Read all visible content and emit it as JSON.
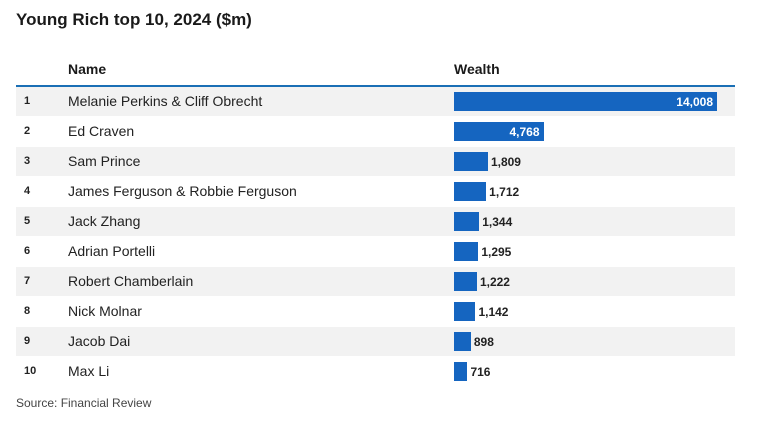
{
  "title": "Young Rich top 10, 2024 ($m)",
  "headers": {
    "name": "Name",
    "wealth": "Wealth"
  },
  "source": "Source: Financial Review",
  "colors": {
    "bar": "#1565c0",
    "rule": "#1a6fb5",
    "stripe": "#f2f2f2"
  },
  "chart_data": {
    "type": "bar",
    "title": "Young Rich top 10, 2024 ($m)",
    "xlabel": "",
    "ylabel": "Wealth",
    "ranks": [
      "1",
      "2",
      "3",
      "4",
      "5",
      "6",
      "7",
      "8",
      "9",
      "10"
    ],
    "categories": [
      "Melanie Perkins & Cliff Obrecht",
      "Ed Craven",
      "Sam Prince",
      "James Ferguson & Robbie Ferguson",
      "Jack Zhang",
      "Adrian Portelli",
      "Robert Chamberlain",
      "Nick Molnar",
      "Jacob Dai",
      "Max Li"
    ],
    "values": [
      14008,
      4768,
      1809,
      1712,
      1344,
      1295,
      1222,
      1142,
      898,
      716
    ],
    "value_labels": [
      "14,008",
      "4,768",
      "1,809",
      "1,712",
      "1,344",
      "1,295",
      "1,222",
      "1,142",
      "898",
      "716"
    ],
    "xlim": [
      0,
      14008
    ]
  }
}
